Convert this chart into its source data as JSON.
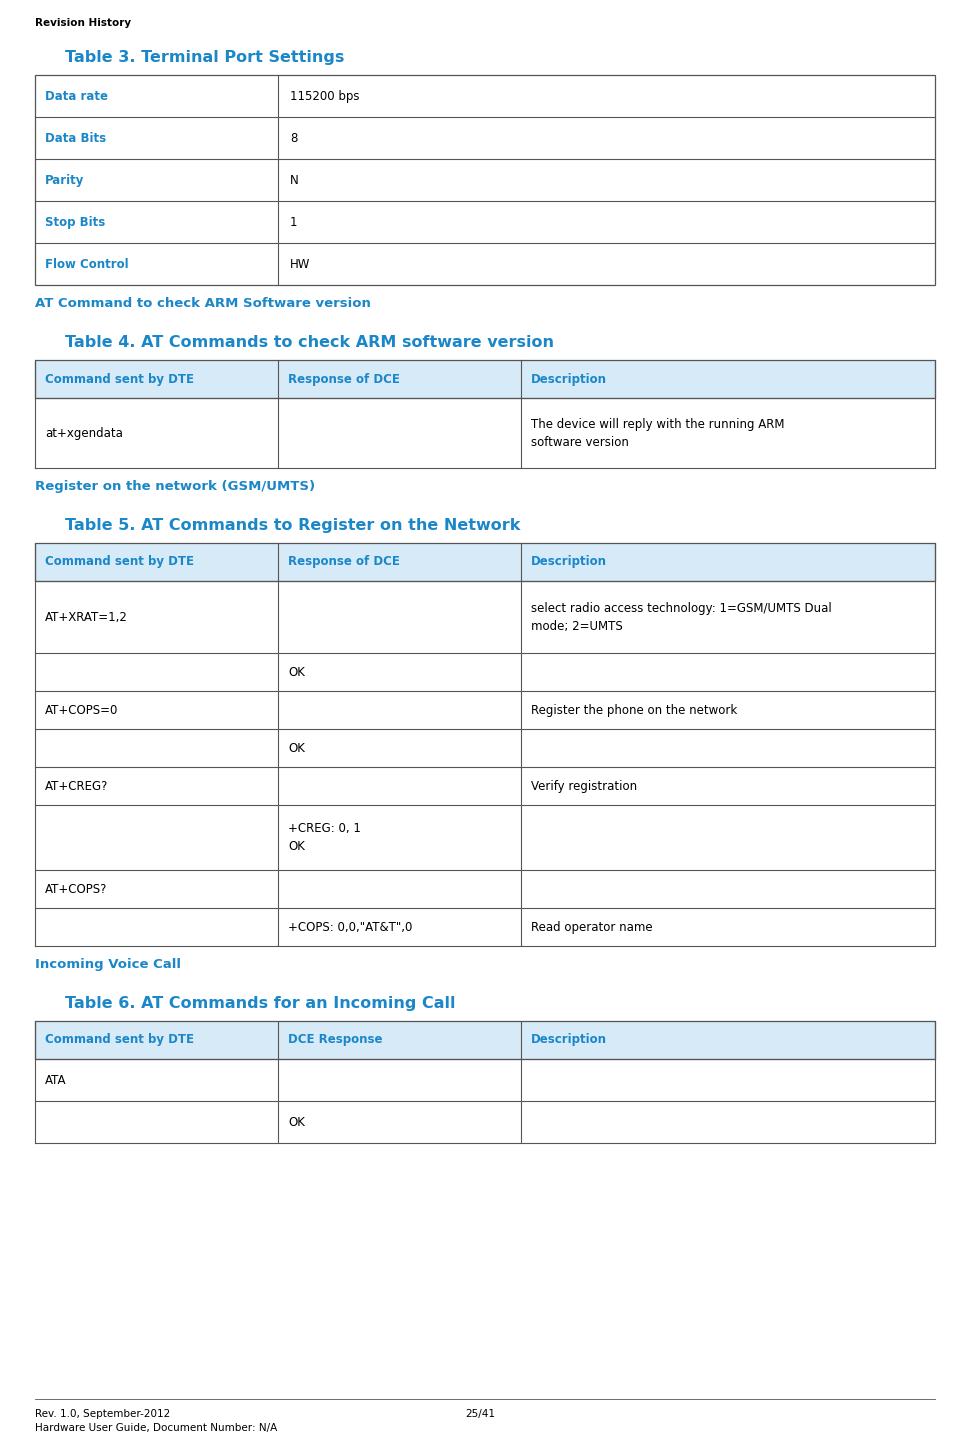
{
  "page_width": 9.6,
  "page_height": 14.37,
  "bg_color": "#ffffff",
  "header_text": "Revision History",
  "footer_left": "Rev. 1.0, September-2012",
  "footer_center": "25/41",
  "footer_right": "Hardware User Guide, Document Number: N/A",
  "blue_color": "#1b87c9",
  "border_color": "#555555",
  "header_bg": "#d6eaf8",
  "text_color": "#000000",
  "table3_title": "Table 3. Terminal Port Settings",
  "table3_rows": [
    [
      "Data rate",
      "115200 bps"
    ],
    [
      "Data Bits",
      "8"
    ],
    [
      "Parity",
      "N"
    ],
    [
      "Stop Bits",
      "1"
    ],
    [
      "Flow Control",
      "HW"
    ]
  ],
  "section2_title": "AT Command to check ARM Software version",
  "table4_title": "Table 4. AT Commands to check ARM software version",
  "table4_headers": [
    "Command sent by DTE",
    "Response of DCE",
    "Description"
  ],
  "table4_rows": [
    [
      "at+xgendata",
      "",
      "The device will reply with the running ARM\nsoftware version"
    ]
  ],
  "section3_title": "Register on the network (GSM/UMTS)",
  "table5_title": "Table 5. AT Commands to Register on the Network",
  "table5_headers": [
    "Command sent by DTE",
    "Response of DCE",
    "Description"
  ],
  "table5_rows": [
    [
      "AT+XRAT=1,2",
      "",
      "select radio access technology: 1=GSM/UMTS Dual\nmode; 2=UMTS"
    ],
    [
      "",
      "OK",
      ""
    ],
    [
      "AT+COPS=0",
      "",
      "Register the phone on the network"
    ],
    [
      "",
      "OK",
      ""
    ],
    [
      "AT+CREG?",
      "",
      "Verify registration"
    ],
    [
      "",
      "+CREG: 0, 1\nOK",
      ""
    ],
    [
      "AT+COPS?",
      "",
      ""
    ],
    [
      "",
      "+COPS: 0,0,\"AT&T\",0",
      "Read operator name"
    ]
  ],
  "section4_title": "Incoming Voice Call",
  "table6_title": "Table 6. AT Commands for an Incoming Call",
  "table6_headers": [
    "Command sent by DTE",
    "DCE Response",
    "Description"
  ],
  "table6_rows": [
    [
      "ATA",
      "",
      ""
    ],
    [
      "",
      "OK",
      ""
    ]
  ]
}
